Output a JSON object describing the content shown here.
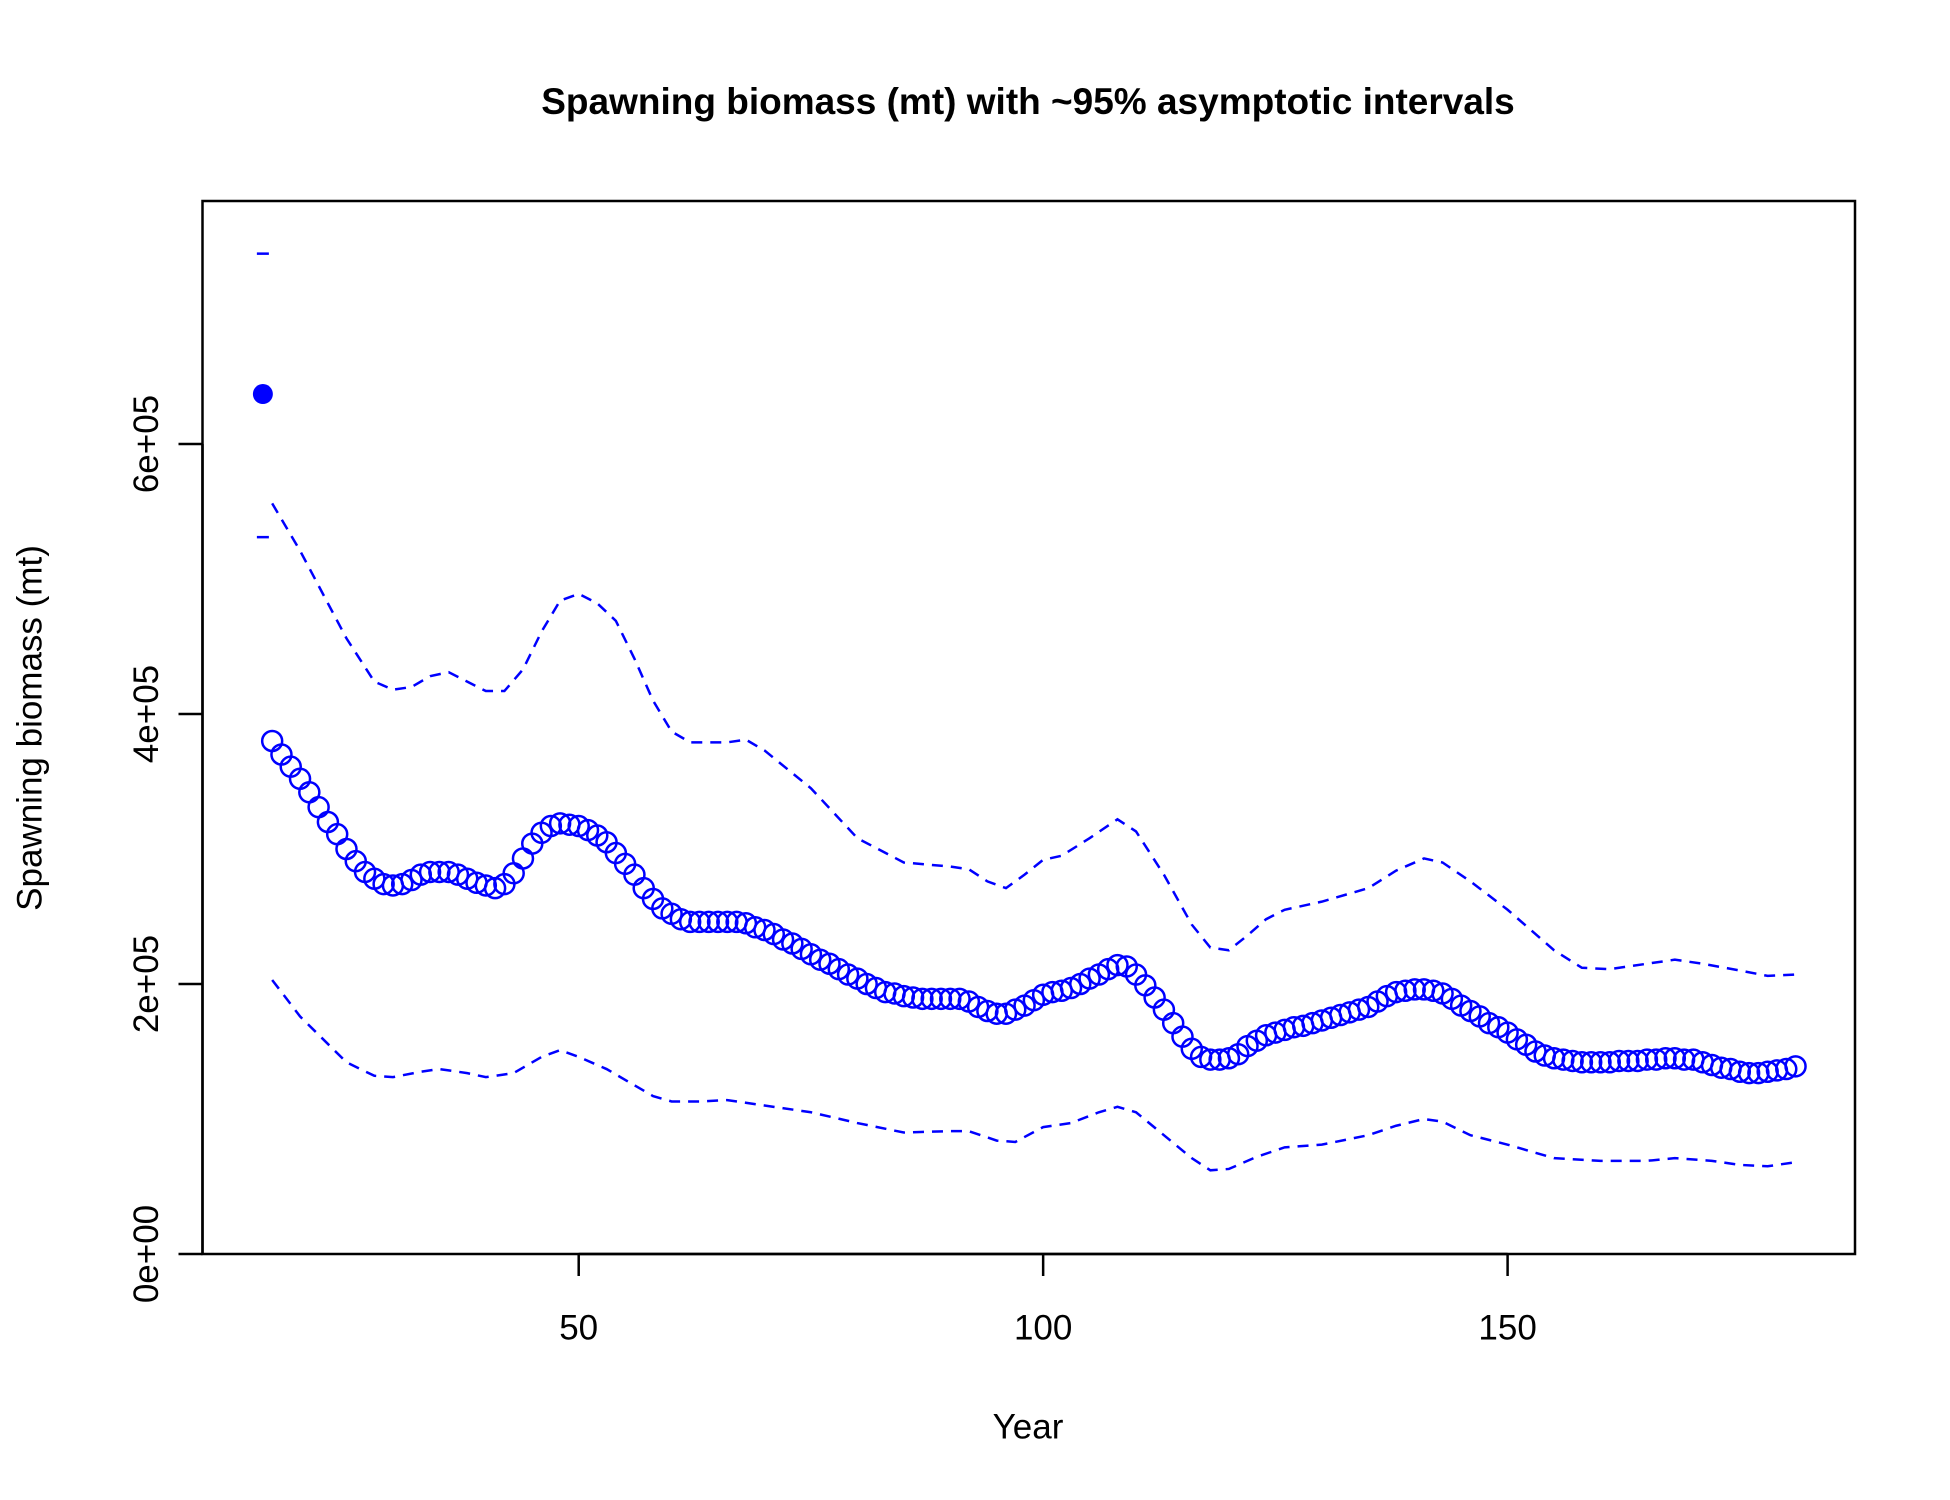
{
  "chart_data": {
    "type": "line",
    "title": "Spawning biomass (mt) with ~95% asymptotic intervals",
    "xlabel": "Year",
    "ylabel": "Spawning biomass (mt)",
    "xlim": [
      9.5,
      187.4
    ],
    "ylim": [
      0,
      780000
    ],
    "xticks": [
      50,
      100,
      150
    ],
    "yticks": [
      {
        "value": 0,
        "label": "0e+00"
      },
      {
        "value": 200000,
        "label": "2e+05"
      },
      {
        "value": 400000,
        "label": "4e+05"
      },
      {
        "value": 600000,
        "label": "6e+05"
      }
    ],
    "color": "#0000ff",
    "virgin": {
      "x": 16,
      "value": 637000,
      "upper": 741000,
      "lower": 531000
    },
    "series": [
      {
        "style": "points",
        "x": [
          17,
          18,
          19,
          20,
          21,
          22,
          23,
          24,
          25,
          26,
          27,
          28,
          29,
          30,
          31,
          32,
          33,
          34,
          35,
          36,
          37,
          38,
          39,
          40,
          41,
          42,
          43,
          44,
          45,
          46,
          47,
          48,
          49,
          50,
          51,
          52,
          53,
          54,
          55,
          56,
          57,
          58,
          59,
          60,
          61,
          62,
          63,
          64,
          65,
          66,
          67,
          68,
          69,
          70,
          71,
          72,
          73,
          74,
          75,
          76,
          77,
          78,
          79,
          80,
          81,
          82,
          83,
          84,
          85,
          86,
          87,
          88,
          89,
          90,
          91,
          92,
          93,
          94,
          95,
          96,
          97,
          98,
          99,
          100,
          101,
          102,
          103,
          104,
          105,
          106,
          107,
          108,
          109,
          110,
          111,
          112,
          113,
          114,
          115,
          116,
          117,
          118,
          119,
          120,
          121,
          122,
          123,
          124,
          125,
          126,
          127,
          128,
          129,
          130,
          131,
          132,
          133,
          134,
          135,
          136,
          137,
          138,
          139,
          140,
          141,
          142,
          143,
          144,
          145,
          146,
          147,
          148,
          149,
          150,
          151,
          152,
          153,
          154,
          155,
          156,
          157,
          158,
          159,
          160,
          161,
          162,
          163,
          164,
          165,
          166,
          167,
          168,
          169,
          170,
          171,
          172,
          173,
          174,
          175,
          176,
          177,
          178,
          179,
          180,
          181
        ],
        "values": [
          380000,
          370000,
          361000,
          352000,
          342000,
          331000,
          320000,
          311000,
          300000,
          291000,
          283000,
          278000,
          274000,
          273000,
          274000,
          277000,
          281000,
          283000,
          283000,
          283000,
          281000,
          278000,
          275000,
          273000,
          271000,
          274000,
          282000,
          293000,
          304000,
          312000,
          317000,
          319000,
          318000,
          317000,
          314000,
          310000,
          305000,
          297000,
          289000,
          281000,
          271000,
          263000,
          256000,
          252000,
          248000,
          246000,
          246000,
          246000,
          246000,
          246000,
          246000,
          245000,
          242000,
          240000,
          237000,
          233000,
          230000,
          226000,
          222000,
          218000,
          215000,
          211000,
          207000,
          204000,
          200000,
          197000,
          194000,
          193000,
          191000,
          190000,
          189000,
          189000,
          189000,
          189000,
          189000,
          187000,
          183000,
          180000,
          178000,
          178000,
          181000,
          184000,
          188000,
          192000,
          194000,
          195000,
          197000,
          200000,
          204000,
          207000,
          211000,
          214000,
          213000,
          207000,
          199000,
          190000,
          181000,
          171000,
          161000,
          152000,
          146000,
          144000,
          144000,
          145000,
          148000,
          154000,
          158000,
          162000,
          164000,
          166000,
          168000,
          169000,
          171000,
          173000,
          175000,
          177000,
          179000,
          181000,
          183000,
          187000,
          191000,
          194000,
          195000,
          196000,
          196000,
          195000,
          193000,
          189000,
          184000,
          180000,
          176000,
          171000,
          168000,
          164000,
          159000,
          155000,
          150000,
          147000,
          145000,
          144000,
          143000,
          142000,
          142000,
          142000,
          142000,
          143000,
          143000,
          143000,
          144000,
          144000,
          145000,
          145000,
          144000,
          144000,
          142000,
          140000,
          138000,
          137000,
          135000,
          134000,
          134000,
          135000,
          136000,
          137000,
          139000
        ]
      },
      {
        "style": "dashed",
        "x": [
          17,
          20,
          25,
          28,
          30,
          32,
          34,
          36,
          38,
          40,
          42,
          44,
          46,
          48,
          50,
          52,
          54,
          56,
          58,
          60,
          62,
          66,
          68,
          70,
          75,
          80,
          85,
          90,
          92,
          94,
          96,
          98,
          100,
          102,
          105,
          108,
          110,
          113,
          116,
          118,
          120,
          122,
          124,
          126,
          130,
          135,
          138,
          141,
          143,
          146,
          150,
          155,
          158,
          161,
          165,
          168,
          171,
          175,
          178,
          181
        ],
        "values": [
          556000,
          521000,
          456000,
          424000,
          418000,
          420000,
          428000,
          431000,
          424000,
          417000,
          417000,
          433000,
          461000,
          484000,
          489000,
          482000,
          469000,
          441000,
          410000,
          387000,
          379000,
          379000,
          381000,
          373000,
          345000,
          308000,
          290000,
          287000,
          285000,
          276000,
          271000,
          281000,
          292000,
          295000,
          308000,
          322000,
          313000,
          281000,
          244000,
          227000,
          225000,
          236000,
          248000,
          255000,
          261000,
          271000,
          284000,
          293000,
          290000,
          276000,
          255000,
          225000,
          212000,
          211000,
          215000,
          218000,
          215000,
          210000,
          206000,
          207000
        ]
      },
      {
        "style": "dashed",
        "x": [
          17,
          20,
          25,
          28,
          30,
          33,
          35,
          38,
          40,
          43,
          46,
          48,
          50,
          53,
          56,
          58,
          60,
          63,
          66,
          70,
          75,
          80,
          85,
          90,
          92,
          95,
          97,
          100,
          103,
          106,
          108,
          110,
          113,
          116,
          118,
          120,
          123,
          126,
          130,
          135,
          138,
          141,
          143,
          146,
          150,
          155,
          160,
          165,
          168,
          172,
          175,
          178,
          181
        ],
        "values": [
          203000,
          176000,
          142000,
          132000,
          131000,
          135000,
          137000,
          134000,
          131000,
          134000,
          146000,
          151000,
          146000,
          137000,
          125000,
          117000,
          113000,
          113000,
          114000,
          110000,
          105000,
          97000,
          90000,
          91000,
          91000,
          84000,
          83000,
          94000,
          97000,
          105000,
          109000,
          105000,
          88000,
          71000,
          62000,
          63000,
          72000,
          79000,
          81000,
          88000,
          95000,
          100000,
          98000,
          88000,
          81000,
          71000,
          69000,
          69000,
          71000,
          69000,
          66000,
          65000,
          68000
        ]
      }
    ]
  }
}
